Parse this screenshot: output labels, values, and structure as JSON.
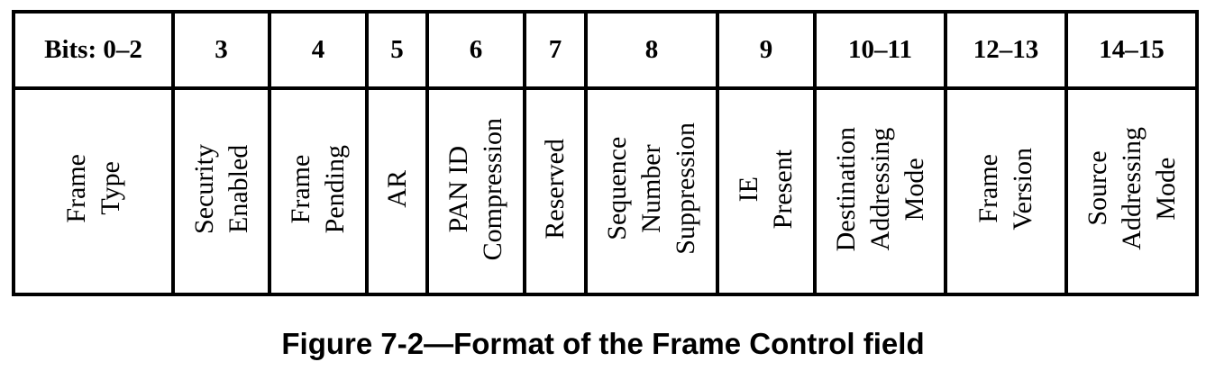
{
  "bits": [
    "Bits: 0–2",
    "3",
    "4",
    "5",
    "6",
    "7",
    "8",
    "9",
    "10–11",
    "12–13",
    "14–15"
  ],
  "fields": [
    [
      "Frame",
      "Type"
    ],
    [
      "Security",
      "Enabled"
    ],
    [
      "Frame",
      "Pending"
    ],
    [
      "AR"
    ],
    [
      "PAN ID",
      "Compression"
    ],
    [
      "Reserved"
    ],
    [
      "Sequence",
      "Number",
      "Suppression"
    ],
    [
      "IE",
      "Present"
    ],
    [
      "Destination",
      "Addressing",
      "Mode"
    ],
    [
      "Frame",
      "Version"
    ],
    [
      "Source",
      "Addressing",
      "Mode"
    ]
  ],
  "caption": "Figure 7-2—Format of the Frame Control field"
}
